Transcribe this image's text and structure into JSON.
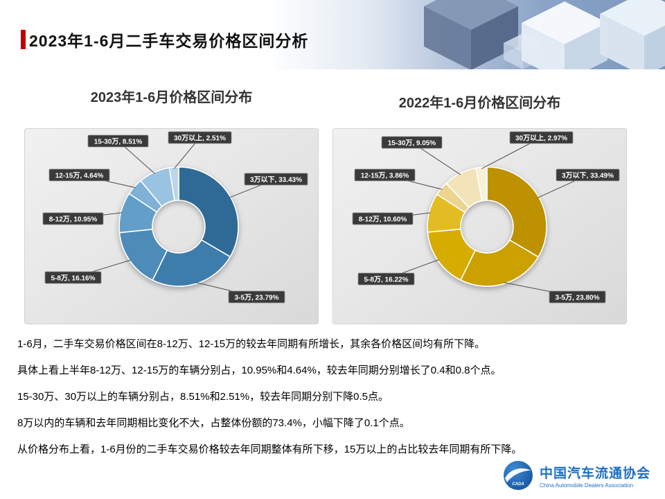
{
  "header": {
    "title": "2023年1-6月二手车交易价格区间分析"
  },
  "chart_data": [
    {
      "type": "pie",
      "subtype": "donut",
      "title": "2023年1-6月价格区间分布",
      "unit": "%",
      "start_angle": 0,
      "direction": "clockwise",
      "legend": "none",
      "categories": [
        "3万以下",
        "3-5万",
        "5-8万",
        "8-12万",
        "12-15万",
        "15-30万",
        "30万以上"
      ],
      "values": [
        33.43,
        23.79,
        16.16,
        10.95,
        4.64,
        8.51,
        2.51
      ],
      "labels": [
        "3万以下, 33.43%",
        "3-5万, 23.79%",
        "5-8万, 16.16%",
        "8-12万, 10.95%",
        "12-15万, 4.64%",
        "15-30万, 8.51%",
        "30万以上, 2.51%"
      ],
      "colors": [
        "#2E6B95",
        "#3E7DAC",
        "#4D8BB9",
        "#649EC9",
        "#7FB0D6",
        "#9AC2E1",
        "#BAD5EC"
      ]
    },
    {
      "type": "pie",
      "subtype": "donut",
      "title": "2022年1-6月价格区间分布",
      "unit": "%",
      "start_angle": 0,
      "direction": "clockwise",
      "legend": "none",
      "categories": [
        "3万以下",
        "3-5万",
        "5-8万",
        "8-12万",
        "12-15万",
        "15-30万",
        "30万以上"
      ],
      "values": [
        33.49,
        23.8,
        16.22,
        10.6,
        3.86,
        9.05,
        2.97
      ],
      "labels": [
        "3万以下, 33.49%",
        "3-5万, 23.80%",
        "5-8万, 16.22%",
        "8-12万, 10.60%",
        "12-15万, 3.86%",
        "15-30万, 9.05%",
        "30万以上, 2.97%"
      ],
      "colors": [
        "#BD9100",
        "#CBA000",
        "#D7AC00",
        "#E2BC24",
        "#EDD491",
        "#F3E3B9",
        "#F9F0D9"
      ]
    }
  ],
  "body_text": [
    "1-6月，二手车交易价格区间在8-12万、12-15万的较去年同期有所增长，其余各价格区间均有所下降。",
    "具体上看上半年8-12万、12-15万的车辆分别占，10.95%和4.64%，较去年同期分别增长了0.4和0.8个点。",
    "15-30万、30万以上的车辆分别占，8.51%和2.51%，较去年同期分别下降0.5点。",
    "8万以内的车辆和去年同期相比变化不大，占整体份额的73.4%，小幅下降了0.1个点。",
    "从价格分布上看，1-6月份的二手车交易价格较去年同期整体有所下移，15万以上的占比较去年同期有所下降。"
  ],
  "footer": {
    "org_name_cn": "中国汽车流通协会",
    "org_name_en": "China Automobile Dealers Association",
    "logo_text": "CADA"
  },
  "colors": {
    "accent_red": "#C00000",
    "brand_blue": "#1E6FC3",
    "label_box": "#3A3A3A"
  }
}
